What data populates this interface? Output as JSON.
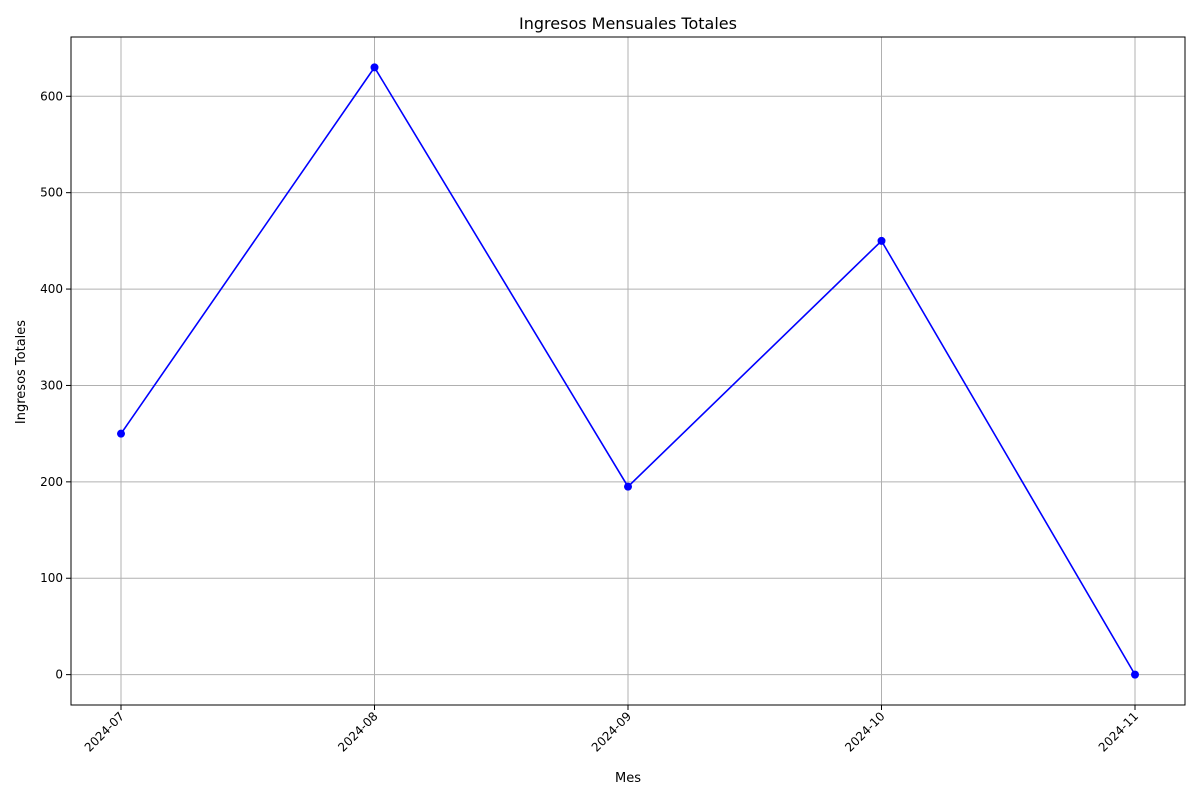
{
  "chart_data": {
    "type": "line",
    "title": "Ingresos Mensuales Totales",
    "xlabel": "Mes",
    "ylabel": "Ingresos Totales",
    "categories": [
      "2024-07",
      "2024-08",
      "2024-09",
      "2024-10",
      "2024-11"
    ],
    "series": [
      {
        "values": [
          250,
          630,
          195,
          450,
          0
        ],
        "color": "#0000ff",
        "marker": "circle"
      }
    ],
    "y_ticks": [
      0,
      100,
      200,
      300,
      400,
      500,
      600
    ],
    "ylim": [
      -31.5,
      661.5
    ],
    "grid": true,
    "x_tick_rotation_deg": 45,
    "colors": {
      "line": "#0000ff",
      "grid": "#b0b0b0",
      "axes": "#000000"
    }
  }
}
